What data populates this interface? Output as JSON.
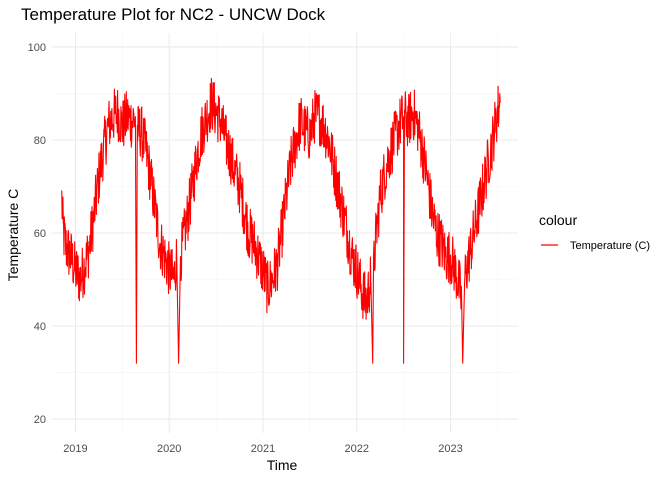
{
  "chart_data": {
    "type": "line",
    "title": "Temperature Plot for NC2 - UNCW Dock",
    "xlabel": "Time",
    "ylabel": "Temperature C",
    "xlim": [
      2018.75,
      2023.72
    ],
    "ylim": [
      17,
      103
    ],
    "x_ticks": [
      2019,
      2020,
      2021,
      2022,
      2023
    ],
    "x_tick_labels": [
      "2019",
      "2020",
      "2021",
      "2022",
      "2023"
    ],
    "y_ticks": [
      20,
      40,
      60,
      80,
      100
    ],
    "y_tick_labels": [
      "20",
      "40",
      "60",
      "80",
      "100"
    ],
    "grid": true,
    "legend": {
      "title": "colour",
      "position": "right",
      "entries": [
        {
          "label": "Temperature (C)",
          "color": "#ff0000"
        }
      ]
    },
    "series": [
      {
        "name": "Temperature (C)",
        "color": "#ff0000",
        "x": [
          2018.85,
          2018.87,
          2018.9,
          2018.95,
          2019.0,
          2019.05,
          2019.1,
          2019.15,
          2019.2,
          2019.25,
          2019.3,
          2019.35,
          2019.4,
          2019.45,
          2019.5,
          2019.55,
          2019.6,
          2019.64,
          2019.65,
          2019.66,
          2019.7,
          2019.75,
          2019.8,
          2019.85,
          2019.9,
          2019.95,
          2020.0,
          2020.05,
          2020.08,
          2020.1,
          2020.12,
          2020.15,
          2020.2,
          2020.25,
          2020.3,
          2020.35,
          2020.4,
          2020.45,
          2020.5,
          2020.55,
          2020.6,
          2020.65,
          2020.7,
          2020.75,
          2020.8,
          2020.85,
          2020.9,
          2020.95,
          2021.0,
          2021.05,
          2021.1,
          2021.15,
          2021.2,
          2021.25,
          2021.3,
          2021.35,
          2021.4,
          2021.45,
          2021.5,
          2021.55,
          2021.6,
          2021.65,
          2021.7,
          2021.75,
          2021.8,
          2021.85,
          2021.9,
          2021.95,
          2022.0,
          2022.05,
          2022.1,
          2022.15,
          2022.17,
          2022.18,
          2022.2,
          2022.25,
          2022.3,
          2022.35,
          2022.4,
          2022.45,
          2022.5,
          2022.5,
          2022.51,
          2022.55,
          2022.6,
          2022.65,
          2022.7,
          2022.75,
          2022.8,
          2022.85,
          2022.9,
          2022.95,
          2023.0,
          2023.05,
          2023.1,
          2023.12,
          2023.13,
          2023.15,
          2023.2,
          2023.25,
          2023.3,
          2023.35,
          2023.4,
          2023.45,
          2023.5,
          2023.53
        ],
        "y": [
          69,
          60,
          57,
          55,
          52,
          50,
          53,
          57,
          64,
          72,
          78,
          83,
          85,
          86,
          83,
          85,
          84,
          85,
          32,
          82,
          82,
          78,
          72,
          65,
          58,
          55,
          52,
          50,
          55,
          32,
          55,
          58,
          64,
          70,
          77,
          82,
          85,
          88,
          86,
          84,
          80,
          77,
          73,
          70,
          65,
          60,
          58,
          55,
          52,
          48,
          50,
          53,
          60,
          68,
          75,
          80,
          84,
          82,
          81,
          85,
          85,
          83,
          80,
          75,
          70,
          65,
          60,
          55,
          52,
          48,
          45,
          50,
          32,
          52,
          58,
          68,
          73,
          77,
          80,
          83,
          85,
          32,
          85,
          84,
          86,
          83,
          78,
          72,
          65,
          60,
          58,
          55,
          55,
          52,
          48,
          45,
          32,
          50,
          55,
          60,
          65,
          70,
          75,
          80,
          86,
          88
        ]
      }
    ]
  }
}
